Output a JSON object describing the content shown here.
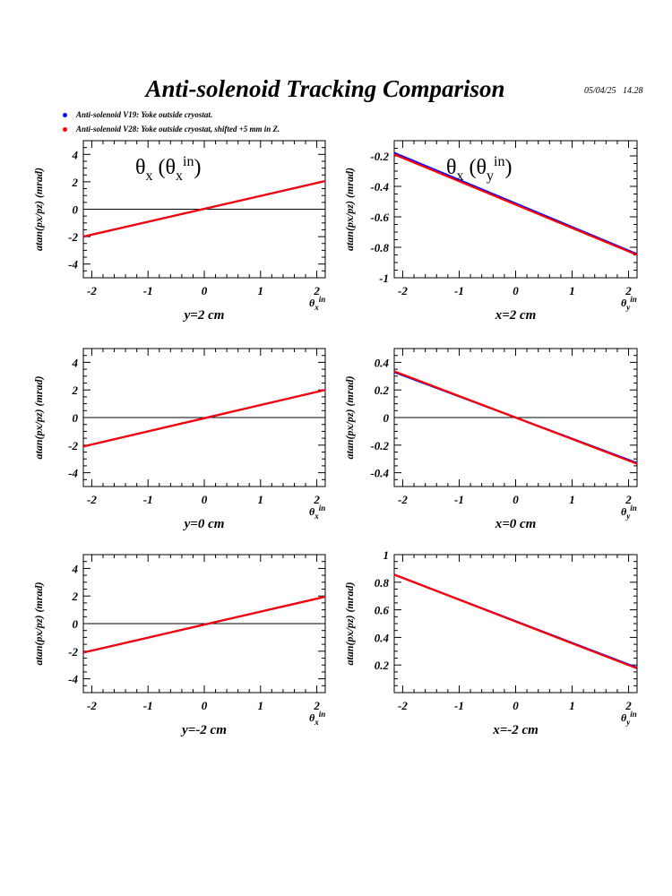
{
  "page": {
    "title": "Anti-solenoid Tracking Comparison",
    "datestamp": "05/04/25   14.28",
    "legend": [
      {
        "label": "Anti-solenoid V19: Yoke outside cryostat.",
        "color": "#0000ff"
      },
      {
        "label": "Anti-solenoid V28: Yoke outside cryostat, shifted +5 mm in Z.",
        "color": "#ff0000"
      }
    ]
  },
  "chart_data": [
    {
      "type": "line",
      "title": "θx (θx in)",
      "xlabel": "y=2 cm",
      "ylabel": "atan(px/pz) (mrad)",
      "axis_corner_label": "θx in",
      "xlim": [
        -2.15,
        2.15
      ],
      "ylim": [
        -5,
        5
      ],
      "xticks": [
        -2,
        -1,
        0,
        1,
        2
      ],
      "yticks": [
        -4,
        -2,
        0,
        2,
        4
      ],
      "zero_line": true,
      "series": [
        {
          "color": "#0000ff",
          "x": [
            -2.15,
            2.15
          ],
          "y": [
            -2.0,
            2.05
          ]
        },
        {
          "color": "#ff0000",
          "x": [
            -2.15,
            2.15
          ],
          "y": [
            -2.0,
            2.05
          ]
        }
      ]
    },
    {
      "type": "line",
      "title": "θx (θy in)",
      "xlabel": "x=2 cm",
      "ylabel": "atan(px/pz) (mrad)",
      "axis_corner_label": "θy in",
      "xlim": [
        -2.15,
        2.15
      ],
      "ylim": [
        -1.0,
        -0.1
      ],
      "xticks": [
        -2,
        -1,
        0,
        1,
        2
      ],
      "yticks": [
        -1,
        -0.8,
        -0.6,
        -0.4,
        -0.2
      ],
      "zero_line": false,
      "series": [
        {
          "color": "#0000ff",
          "x": [
            -2.15,
            2.15
          ],
          "y": [
            -0.18,
            -0.845
          ]
        },
        {
          "color": "#ff0000",
          "x": [
            -2.15,
            2.15
          ],
          "y": [
            -0.19,
            -0.85
          ]
        }
      ]
    },
    {
      "type": "line",
      "title": "",
      "xlabel": "y=0 cm",
      "ylabel": "atan(px/pz) (mrad)",
      "axis_corner_label": "θx in",
      "xlim": [
        -2.15,
        2.15
      ],
      "ylim": [
        -5,
        5
      ],
      "xticks": [
        -2,
        -1,
        0,
        1,
        2
      ],
      "yticks": [
        -4,
        -2,
        0,
        2,
        4
      ],
      "zero_line": true,
      "series": [
        {
          "color": "#0000ff",
          "x": [
            -2.15,
            2.15
          ],
          "y": [
            -2.1,
            2.0
          ]
        },
        {
          "color": "#ff0000",
          "x": [
            -2.15,
            2.15
          ],
          "y": [
            -2.1,
            2.0
          ]
        }
      ]
    },
    {
      "type": "line",
      "title": "",
      "xlabel": "x=0 cm",
      "ylabel": "atan(px/pz) (mrad)",
      "axis_corner_label": "θy in",
      "xlim": [
        -2.15,
        2.15
      ],
      "ylim": [
        -0.5,
        0.5
      ],
      "xticks": [
        -2,
        -1,
        0,
        1,
        2
      ],
      "yticks": [
        -0.4,
        -0.2,
        0,
        0.2,
        0.4
      ],
      "zero_line": true,
      "series": [
        {
          "color": "#0000ff",
          "x": [
            -2.15,
            2.15
          ],
          "y": [
            0.33,
            -0.33
          ]
        },
        {
          "color": "#ff0000",
          "x": [
            -2.15,
            2.15
          ],
          "y": [
            0.335,
            -0.335
          ]
        }
      ]
    },
    {
      "type": "line",
      "title": "",
      "xlabel": "y=-2 cm",
      "ylabel": "atan(px/pz) (mrad)",
      "axis_corner_label": "θx in",
      "xlim": [
        -2.15,
        2.15
      ],
      "ylim": [
        -5,
        5
      ],
      "xticks": [
        -2,
        -1,
        0,
        1,
        2
      ],
      "yticks": [
        -4,
        -2,
        0,
        2,
        4
      ],
      "zero_line": true,
      "series": [
        {
          "color": "#0000ff",
          "x": [
            -2.15,
            2.15
          ],
          "y": [
            -2.1,
            1.95
          ]
        },
        {
          "color": "#ff0000",
          "x": [
            -2.15,
            2.15
          ],
          "y": [
            -2.1,
            1.95
          ]
        }
      ]
    },
    {
      "type": "line",
      "title": "",
      "xlabel": "x=-2 cm",
      "ylabel": "atan(px/pz) (mrad)",
      "axis_corner_label": "θy in",
      "xlim": [
        -2.15,
        2.15
      ],
      "ylim": [
        0,
        1
      ],
      "xticks": [
        -2,
        -1,
        0,
        1,
        2
      ],
      "yticks": [
        0.2,
        0.4,
        0.6,
        0.8,
        1
      ],
      "zero_line": false,
      "series": [
        {
          "color": "#0000ff",
          "x": [
            -2.15,
            2.15
          ],
          "y": [
            0.855,
            0.18
          ]
        },
        {
          "color": "#ff0000",
          "x": [
            -2.15,
            2.15
          ],
          "y": [
            0.855,
            0.175
          ]
        }
      ]
    }
  ]
}
